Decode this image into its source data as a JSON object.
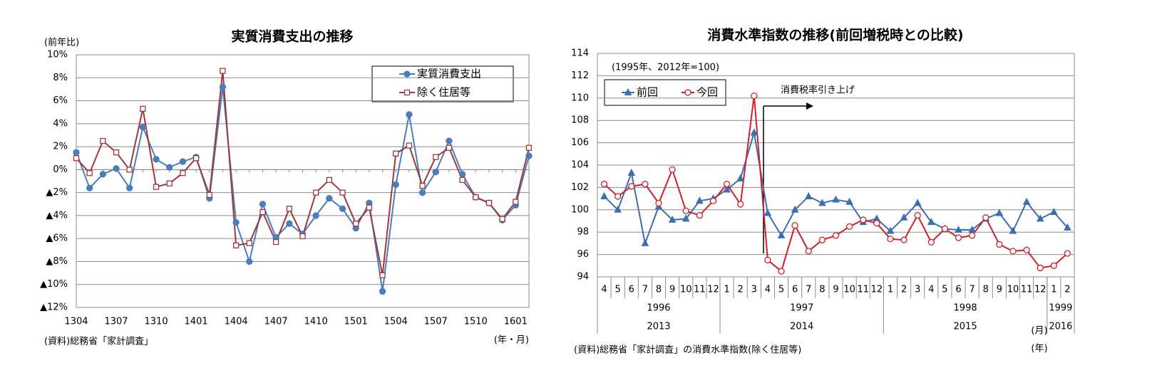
{
  "chart_data": [
    {
      "type": "line",
      "title": "実質消費支出の推移",
      "y_label": "(前年比)",
      "note": "(資料)総務省「家計調査」",
      "x_label": "(年・月)",
      "categories": [
        "1304",
        null,
        null,
        "1307",
        null,
        null,
        "1310",
        null,
        null,
        "1401",
        null,
        null,
        "1404",
        null,
        null,
        "1407",
        null,
        null,
        "1410",
        null,
        null,
        "1501",
        null,
        null,
        "1504",
        null,
        null,
        "1507",
        null,
        null,
        "1510",
        null,
        null,
        "1601",
        null
      ],
      "series": [
        {
          "name": "実質消費支出",
          "color": "#4a7ebb",
          "marker": "circle",
          "values": [
            1.5,
            -1.6,
            -0.4,
            0.1,
            -1.6,
            3.7,
            0.9,
            0.2,
            0.7,
            1.1,
            -2.5,
            7.2,
            -4.6,
            -8.0,
            -3.0,
            -5.9,
            -4.7,
            -5.6,
            -4.0,
            -2.5,
            -3.4,
            -5.1,
            -2.9,
            -10.6,
            -1.3,
            4.8,
            -2.0,
            -0.2,
            2.5,
            -0.4,
            -2.4,
            -2.9,
            -4.4,
            -3.1,
            1.2
          ]
        },
        {
          "name": "除く住居等",
          "color": "#a0373a",
          "marker": "square-open",
          "values": [
            1.0,
            -0.3,
            2.5,
            1.5,
            0.0,
            5.3,
            -1.5,
            -1.2,
            -0.3,
            1.0,
            -2.2,
            8.6,
            -6.6,
            -6.4,
            -3.7,
            -6.3,
            -3.4,
            -5.8,
            -2.0,
            -0.9,
            -2.0,
            -4.7,
            -3.3,
            -9.2,
            1.4,
            2.1,
            -1.4,
            1.1,
            1.9,
            -0.9,
            -2.4,
            -2.9,
            -4.3,
            -2.8,
            1.9
          ]
        }
      ],
      "ylim": [
        -12,
        10
      ],
      "yticks": [
        {
          "value": -12,
          "label": "▲12%"
        },
        {
          "value": -10,
          "label": "▲10%"
        },
        {
          "value": -8,
          "label": "▲8%"
        },
        {
          "value": -6,
          "label": "▲6%"
        },
        {
          "value": -4,
          "label": "▲4%"
        },
        {
          "value": -2,
          "label": "▲2%"
        },
        {
          "value": 0,
          "label": "0%"
        },
        {
          "value": 2,
          "label": "2%"
        },
        {
          "value": 4,
          "label": "4%"
        },
        {
          "value": 6,
          "label": "6%"
        },
        {
          "value": 8,
          "label": "8%"
        },
        {
          "value": 10,
          "label": "10%"
        }
      ],
      "grid": true
    },
    {
      "type": "line",
      "title": "消費水準指数の推移(前回増税時との比較)",
      "subtitle": "(1995年、2012年=100)",
      "annotation": "消費税率引き上げ",
      "note": "(資料)総務省「家計調査」の消費水準指数(除く住居等)",
      "month_label": "(月)",
      "year_label": "(年)",
      "categories": [
        "4",
        "5",
        "6",
        "7",
        "8",
        "9",
        "10",
        "11",
        "12",
        "1",
        "2",
        "3",
        "4",
        "5",
        "6",
        "7",
        "8",
        "9",
        "10",
        "11",
        "12",
        "1",
        "2",
        "3",
        "4",
        "5",
        "6",
        "7",
        "8",
        "9",
        "10",
        "11",
        "12",
        "1",
        "2"
      ],
      "years_previous": [
        "1996",
        "1997",
        "1998",
        "1999"
      ],
      "years_current": [
        "2013",
        "2014",
        "2015",
        "2016"
      ],
      "series": [
        {
          "name": "前回",
          "color": "#3c6fb0",
          "marker": "triangle",
          "values": [
            101.2,
            100.0,
            103.3,
            97.0,
            100.3,
            99.1,
            99.2,
            100.8,
            101.0,
            101.8,
            102.8,
            106.9,
            99.7,
            97.7,
            100.0,
            101.2,
            100.6,
            100.9,
            100.7,
            98.9,
            99.2,
            98.1,
            99.3,
            100.6,
            98.9,
            98.3,
            98.2,
            98.2,
            99.2,
            99.7,
            98.1,
            100.7,
            99.2,
            99.8,
            98.4
          ]
        },
        {
          "name": "今回",
          "color": "#d0202a",
          "marker": "circle-open",
          "values": [
            102.3,
            101.2,
            102.1,
            102.3,
            100.6,
            103.6,
            99.9,
            99.5,
            100.8,
            102.3,
            100.5,
            110.2,
            95.5,
            94.5,
            98.6,
            96.3,
            97.3,
            97.7,
            98.5,
            99.1,
            98.8,
            97.4,
            97.3,
            99.5,
            97.1,
            98.3,
            97.5,
            97.7,
            99.3,
            96.9,
            96.3,
            96.4,
            94.8,
            95.0,
            96.1
          ]
        }
      ],
      "ylim": [
        94,
        114
      ],
      "yticks": [
        94,
        96,
        98,
        100,
        102,
        104,
        106,
        108,
        110,
        112,
        114
      ],
      "grid": true
    }
  ]
}
